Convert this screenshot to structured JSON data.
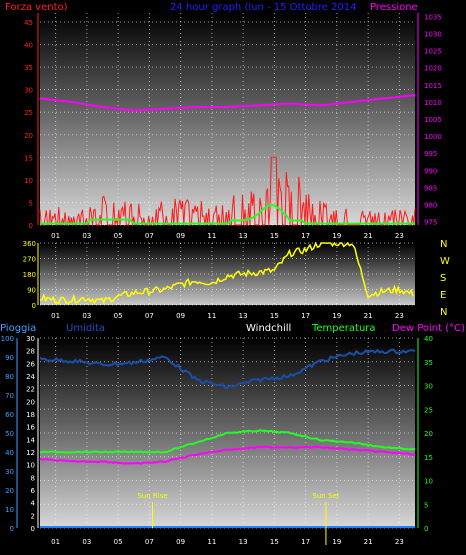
{
  "panel1": {
    "left_label": "Forza vento)",
    "title": "24 hour graph (lun - 15 Ottobre 2014",
    "right_label": "Pressione",
    "colors": {
      "left": "#ff2020",
      "title": "#2020ff",
      "right": "#ff00ff"
    }
  },
  "panel2": {
    "compass": [
      "N",
      "W",
      "S",
      "E",
      "N"
    ],
    "compass_color": "#ffff00"
  },
  "panel3": {
    "labels": [
      {
        "text": "Pioggia",
        "color": "#3fa0ff"
      },
      {
        "text": "Umidita",
        "color": "#2050c0"
      },
      {
        "text": "Windchill",
        "color": "#ffffff"
      },
      {
        "text": "Temperatura",
        "color": "#20ff20"
      },
      {
        "text": "Dew Point (°C)",
        "color": "#ff00ff"
      }
    ],
    "sun_rise": "Sun Rise",
    "sun_set": "Sun Set"
  },
  "x_ticks": [
    "01",
    "03",
    "05",
    "07",
    "09",
    "11",
    "13",
    "15",
    "17",
    "19",
    "21",
    "23"
  ],
  "chart_data": [
    {
      "type": "line",
      "x": [
        0,
        2,
        4,
        6,
        8,
        10,
        12,
        14,
        16,
        18,
        20,
        22,
        24
      ],
      "series": [
        {
          "name": "Pressione",
          "values": [
            1011,
            1010,
            1008.5,
            1007.5,
            1008,
            1008.5,
            1008.5,
            1009,
            1009.5,
            1009,
            1010,
            1011,
            1012
          ]
        },
        {
          "name": "Forza vento)",
          "values": [
            3,
            2,
            4,
            3,
            4,
            3,
            4,
            5,
            9,
            3,
            2,
            2,
            3
          ]
        }
      ],
      "y_left_ticks": [
        "0",
        "5",
        "10",
        "15",
        "20",
        "25",
        "30",
        "35",
        "40",
        "45"
      ],
      "y_left_range": [
        0,
        47
      ],
      "y_right_ticks": [
        "975",
        "980",
        "985",
        "990",
        "995",
        "1000",
        "1005",
        "1010",
        "1015",
        "1020",
        "1025",
        "1030",
        "1035"
      ],
      "y_right_range": [
        974,
        1036
      ],
      "grid": true
    },
    {
      "type": "line",
      "x": [
        0,
        1,
        2,
        3,
        4,
        5,
        6,
        7,
        8,
        9,
        10,
        11,
        12,
        13,
        14,
        15,
        16,
        17,
        18,
        19,
        20,
        21,
        22,
        23,
        24
      ],
      "series": [
        {
          "values": [
            40,
            30,
            30,
            40,
            20,
            50,
            70,
            80,
            90,
            120,
            140,
            130,
            170,
            180,
            190,
            200,
            300,
            320,
            360,
            360,
            360,
            60,
            80,
            90,
            60
          ]
        }
      ],
      "y_ticks": [
        "0",
        "90",
        "180",
        "270",
        "360"
      ],
      "y_range": [
        0,
        360
      ],
      "grid": true
    },
    {
      "type": "line",
      "x": [
        0,
        2,
        4,
        6,
        8,
        10,
        12,
        14,
        16,
        18,
        20,
        22,
        24
      ],
      "series": [
        {
          "name": "Umidita",
          "values": [
            89,
            88,
            86,
            87,
            90,
            78,
            74,
            78,
            80,
            88,
            92,
            93,
            93
          ]
        },
        {
          "name": "Temperatura",
          "values": [
            16,
            16,
            16,
            16,
            16,
            18,
            20,
            20.5,
            20,
            18.5,
            18,
            17,
            16.5
          ]
        },
        {
          "name": "Dew Point (°C)",
          "values": [
            14.5,
            14,
            14,
            13.5,
            14,
            15.5,
            16.5,
            17,
            17,
            17,
            16.5,
            16,
            15.5
          ]
        },
        {
          "name": "Pioggia",
          "values": [
            0,
            0,
            0,
            0,
            0,
            0,
            0,
            0,
            0,
            0,
            0,
            0,
            0
          ]
        }
      ],
      "y_left_outer_ticks": [
        "0",
        "10",
        "20",
        "30",
        "40",
        "50",
        "60",
        "70",
        "80",
        "90",
        "100"
      ],
      "y_left_inner_ticks": [
        "0",
        "2",
        "4",
        "6",
        "8",
        "10",
        "12",
        "14",
        "16",
        "18",
        "20",
        "22",
        "24",
        "26",
        "28",
        "30"
      ],
      "y_right_ticks": [
        "0",
        "5",
        "10",
        "15",
        "20",
        "25",
        "30",
        "35",
        "40"
      ],
      "y_right_range": [
        0,
        40
      ],
      "sun_rise_hour": 7.2,
      "sun_set_hour": 18.3,
      "grid": true
    }
  ]
}
